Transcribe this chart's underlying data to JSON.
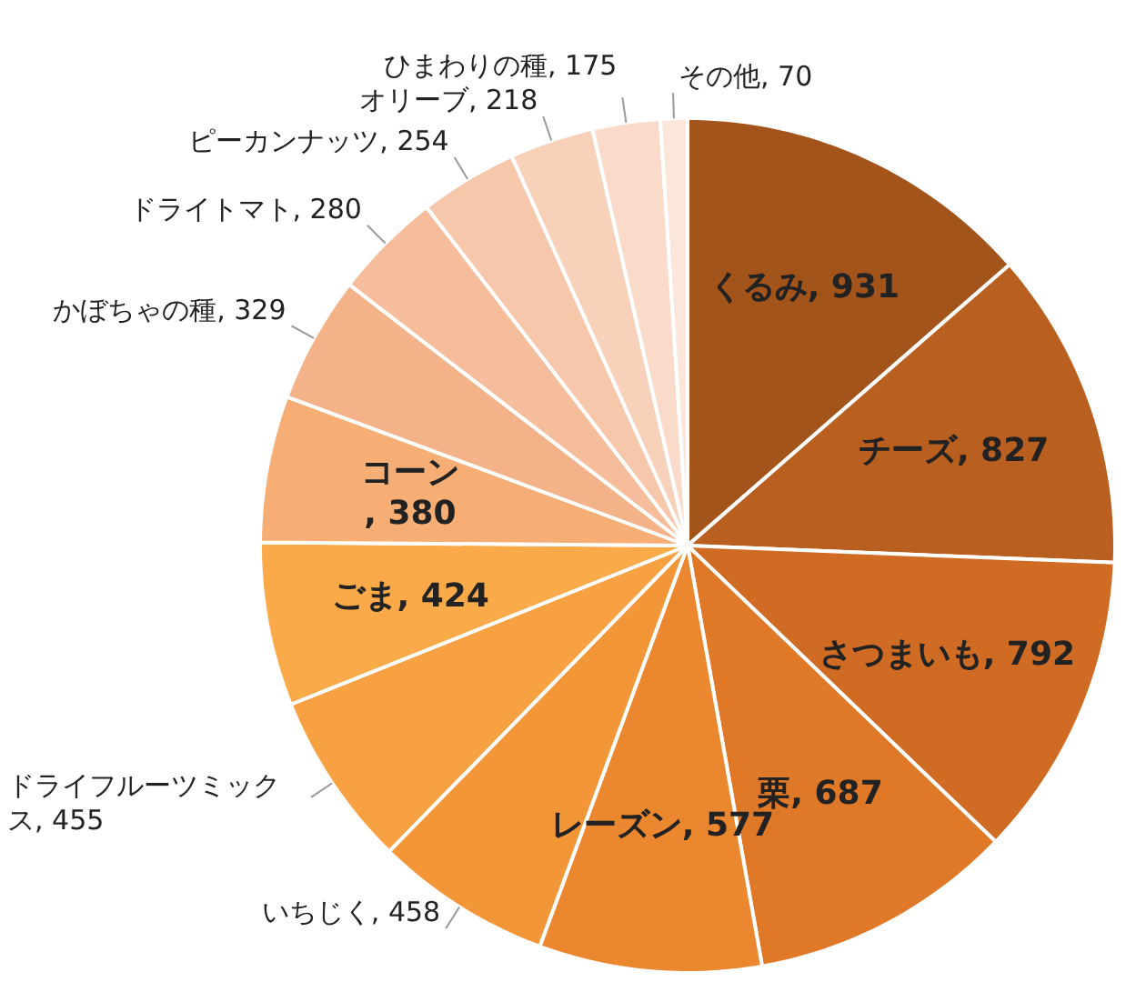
{
  "chart_data": {
    "type": "pie",
    "categories": [
      "くるみ",
      "チーズ",
      "さつまいも",
      "栗",
      "レーズン",
      "いちじく",
      "ドライフルーツミックス",
      "ごま",
      "コーン",
      "かぼちゃの種",
      "ドライトマト",
      "ピーカンナッツ",
      "オリーブ",
      "ひまわりの種",
      "その他"
    ],
    "values": [
      931,
      827,
      792,
      687,
      577,
      458,
      455,
      424,
      380,
      329,
      280,
      254,
      218,
      175,
      70
    ],
    "value_labels": [
      ", 931",
      ", 827",
      ", 792",
      ", 687",
      ", 577",
      ", 458",
      ", 455",
      ", 424",
      ", 380",
      ", 329",
      ", 280",
      ", 254",
      ", 218",
      ", 175",
      ", 70"
    ],
    "colors": [
      "#a3541b",
      "#b95f1f",
      "#cf6b23",
      "#df7827",
      "#ea872f",
      "#f39638",
      "#f8a143",
      "#fbaa4a",
      "#f7ae74",
      "#f3b287",
      "#f5bd9b",
      "#f6c7ab",
      "#f8d1bb",
      "#fadbca",
      "#fce6da"
    ]
  }
}
